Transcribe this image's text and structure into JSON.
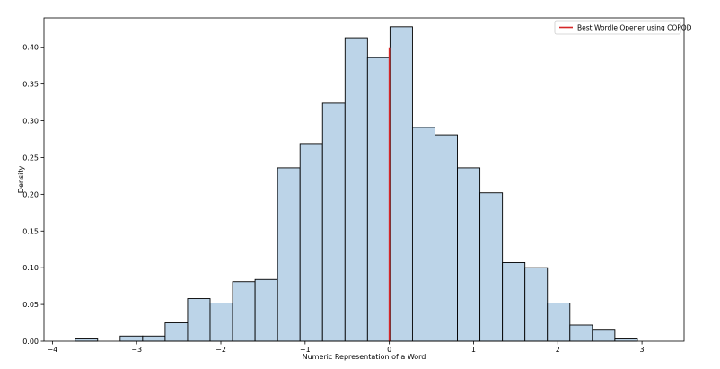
{
  "chart_data": {
    "type": "bar",
    "xlabel": "Numeric Representation of a Word",
    "ylabel": "Density",
    "xlim": [
      -4.1,
      3.5
    ],
    "ylim": [
      0,
      0.44
    ],
    "x_ticks": [
      -4,
      -3,
      -2,
      -1,
      0,
      1,
      2,
      3
    ],
    "x_tick_labels": [
      "−4",
      "−3",
      "−2",
      "−1",
      "0",
      "1",
      "2",
      "3"
    ],
    "y_ticks": [
      0.0,
      0.05,
      0.1,
      0.15,
      0.2,
      0.25,
      0.3,
      0.35,
      0.4
    ],
    "y_tick_labels": [
      "0.00",
      "0.05",
      "0.10",
      "0.15",
      "0.20",
      "0.25",
      "0.30",
      "0.35",
      "0.40"
    ],
    "grid": false,
    "legend_position": "top-right",
    "bin_width": 0.267,
    "bin_edges": [
      -3.73,
      -3.463,
      -3.196,
      -2.929,
      -2.662,
      -2.395,
      -2.128,
      -1.861,
      -1.594,
      -1.327,
      -1.06,
      -0.793,
      -0.526,
      -0.259,
      0.008,
      0.275,
      0.542,
      0.809,
      1.076,
      1.343,
      1.61,
      1.877,
      2.144,
      2.411,
      2.678,
      2.945,
      3.212
    ],
    "values": [
      0.003,
      0.0,
      0.007,
      0.007,
      0.025,
      0.058,
      0.052,
      0.081,
      0.084,
      0.236,
      0.269,
      0.324,
      0.413,
      0.386,
      0.428,
      0.291,
      0.281,
      0.236,
      0.202,
      0.107,
      0.1,
      0.052,
      0.022,
      0.015,
      0.003,
      0.0
    ],
    "bar_fill": "#bcd4e8",
    "bar_edge": "#000000",
    "marker": {
      "label": "Best Wordle Opener using COPOD",
      "x": 0.0,
      "y_range": [
        0.0,
        0.4
      ],
      "color": "#d62728"
    }
  }
}
